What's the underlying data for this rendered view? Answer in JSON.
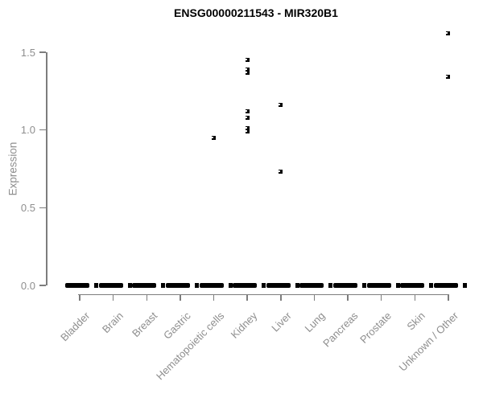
{
  "colors": {
    "point": "#000000",
    "axis_line": "#7d7d7d",
    "axis_text": "#8e8e8e",
    "title_text": "#000000",
    "background": "#ffffff"
  },
  "chart_data": {
    "type": "scatter",
    "title": "ENSG00000211543 - MIR320B1",
    "xlabel": "",
    "ylabel": "Expression",
    "ylim": [
      0,
      1.65
    ],
    "yticks": [
      0.0,
      0.5,
      1.0,
      1.5
    ],
    "ytick_labels": [
      "0.0",
      "0.5",
      "1.0",
      "1.5"
    ],
    "categories": [
      "Bladder",
      "Brain",
      "Breast",
      "Gastric",
      "Hematopoietic cells",
      "Kidney",
      "Liver",
      "Lung",
      "Pancreas",
      "Prostate",
      "Skin",
      "Unknown / Other"
    ],
    "x_tick_label_rotation": 45,
    "grid": false,
    "legend": "none",
    "point_style": "small black square marker",
    "points": [
      {
        "category": "Hematopoietic cells",
        "values": [
          0.95
        ]
      },
      {
        "category": "Kidney",
        "values": [
          1.45,
          1.39,
          1.37,
          1.12,
          1.08,
          1.01,
          0.99
        ]
      },
      {
        "category": "Liver",
        "values": [
          1.16,
          0.73
        ]
      },
      {
        "category": "Unknown / Other",
        "values": [
          1.62,
          1.34
        ]
      }
    ],
    "zero_clusters": {
      "value": 0.0,
      "categories": "all",
      "note": "dense overlapping cluster of samples at expression 0 in every tissue category, drawn as a thick black dash plus a detached point at its right"
    }
  }
}
